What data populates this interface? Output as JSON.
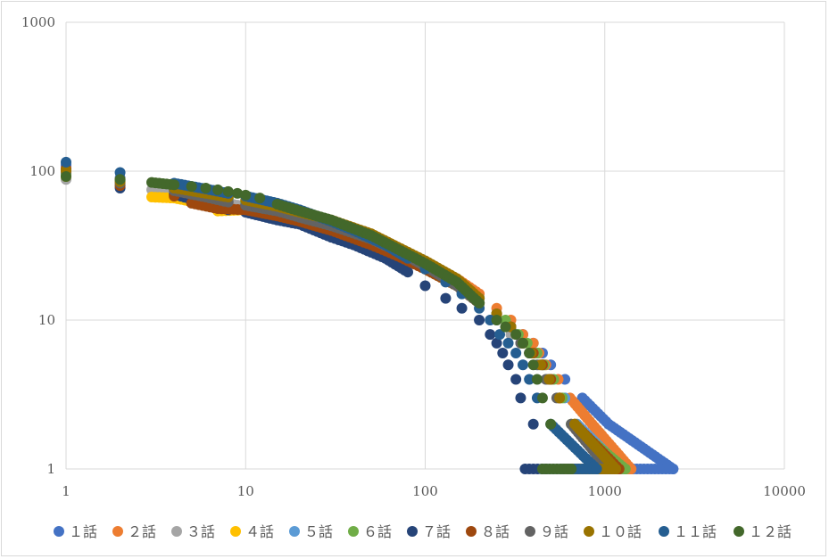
{
  "chart_data": {
    "type": "scatter",
    "title": "",
    "xlabel": "",
    "ylabel": "",
    "x_scale": "log",
    "y_scale": "log",
    "xlim": [
      1,
      10000
    ],
    "ylim": [
      1,
      1000
    ],
    "x_ticks": [
      "1",
      "10",
      "100",
      "1000",
      "10000"
    ],
    "y_ticks": [
      "1",
      "10",
      "100",
      "1000"
    ],
    "grid": true,
    "legend_position": "bottom",
    "series": [
      {
        "name": "１話",
        "color": "#4472C4",
        "points": [
          [
            1,
            110
          ],
          [
            2,
            90
          ],
          [
            4,
            75
          ],
          [
            6,
            68
          ],
          [
            8,
            63
          ],
          [
            10,
            60
          ],
          [
            15,
            55
          ],
          [
            20,
            48
          ],
          [
            30,
            42
          ],
          [
            40,
            37
          ],
          [
            60,
            30
          ],
          [
            80,
            25
          ],
          [
            100,
            22
          ],
          [
            150,
            17
          ],
          [
            200,
            14
          ],
          [
            250,
            11
          ],
          [
            300,
            9
          ],
          [
            350,
            8
          ],
          [
            400,
            7
          ],
          [
            450,
            6
          ],
          [
            500,
            5
          ],
          [
            600,
            4
          ],
          [
            750,
            3
          ],
          [
            1050,
            2
          ],
          [
            2400,
            1
          ]
        ]
      },
      {
        "name": "２話",
        "color": "#ED7D31",
        "points": [
          [
            1,
            95
          ],
          [
            2,
            88
          ],
          [
            4,
            80
          ],
          [
            6,
            70
          ],
          [
            8,
            65
          ],
          [
            10,
            62
          ],
          [
            15,
            57
          ],
          [
            20,
            52
          ],
          [
            30,
            46
          ],
          [
            40,
            40
          ],
          [
            60,
            33
          ],
          [
            80,
            27
          ],
          [
            100,
            24
          ],
          [
            150,
            19
          ],
          [
            200,
            15
          ],
          [
            250,
            12
          ],
          [
            300,
            10
          ],
          [
            350,
            8
          ],
          [
            400,
            7
          ],
          [
            430,
            6
          ],
          [
            470,
            5
          ],
          [
            550,
            4
          ],
          [
            640,
            3
          ],
          [
            850,
            2
          ],
          [
            1400,
            1
          ]
        ]
      },
      {
        "name": "３話",
        "color": "#A5A5A5",
        "points": [
          [
            1,
            88
          ],
          [
            2,
            82
          ],
          [
            3,
            75
          ],
          [
            5,
            67
          ],
          [
            7,
            62
          ],
          [
            10,
            58
          ],
          [
            15,
            52
          ],
          [
            20,
            47
          ],
          [
            30,
            41
          ],
          [
            50,
            33
          ],
          [
            70,
            28
          ],
          [
            100,
            22
          ],
          [
            150,
            17
          ],
          [
            200,
            13
          ],
          [
            250,
            10
          ],
          [
            300,
            8
          ],
          [
            340,
            7
          ],
          [
            380,
            6
          ],
          [
            430,
            5
          ],
          [
            480,
            4
          ],
          [
            560,
            3
          ],
          [
            700,
            2
          ],
          [
            1200,
            1
          ]
        ]
      },
      {
        "name": "４話",
        "color": "#FFC000",
        "points": [
          [
            1,
            92
          ],
          [
            2,
            80
          ],
          [
            3,
            67
          ],
          [
            4,
            66
          ],
          [
            6,
            60
          ],
          [
            7,
            54
          ],
          [
            10,
            55
          ],
          [
            15,
            52
          ],
          [
            20,
            47
          ],
          [
            30,
            42
          ],
          [
            50,
            34
          ],
          [
            70,
            28
          ],
          [
            100,
            22
          ],
          [
            150,
            17
          ],
          [
            200,
            13
          ],
          [
            250,
            11
          ],
          [
            300,
            9
          ],
          [
            350,
            7
          ],
          [
            400,
            6
          ],
          [
            450,
            5
          ],
          [
            500,
            4
          ],
          [
            560,
            3
          ],
          [
            680,
            2
          ],
          [
            1100,
            1
          ]
        ]
      },
      {
        "name": "５話",
        "color": "#5B9BD5",
        "points": [
          [
            1,
            98
          ],
          [
            2,
            86
          ],
          [
            4,
            76
          ],
          [
            6,
            70
          ],
          [
            8,
            65
          ],
          [
            10,
            61
          ],
          [
            15,
            56
          ],
          [
            20,
            50
          ],
          [
            30,
            44
          ],
          [
            50,
            35
          ],
          [
            70,
            29
          ],
          [
            100,
            23
          ],
          [
            150,
            18
          ],
          [
            200,
            14
          ],
          [
            250,
            11
          ],
          [
            300,
            9
          ],
          [
            350,
            7
          ],
          [
            400,
            6
          ],
          [
            450,
            5
          ],
          [
            500,
            4
          ],
          [
            600,
            3
          ],
          [
            700,
            2
          ],
          [
            1250,
            1
          ]
        ]
      },
      {
        "name": "６話",
        "color": "#70AD47",
        "points": [
          [
            1,
            96
          ],
          [
            2,
            87
          ],
          [
            4,
            78
          ],
          [
            6,
            71
          ],
          [
            8,
            66
          ],
          [
            10,
            62
          ],
          [
            15,
            57
          ],
          [
            20,
            51
          ],
          [
            30,
            45
          ],
          [
            50,
            36
          ],
          [
            70,
            30
          ],
          [
            100,
            24
          ],
          [
            150,
            18
          ],
          [
            200,
            14
          ],
          [
            250,
            11
          ],
          [
            280,
            10
          ],
          [
            330,
            8
          ],
          [
            370,
            7
          ],
          [
            420,
            6
          ],
          [
            460,
            5
          ],
          [
            520,
            4
          ],
          [
            580,
            3
          ],
          [
            650,
            2
          ],
          [
            1300,
            1
          ]
        ]
      },
      {
        "name": "７話",
        "color": "#264478",
        "points": [
          [
            1,
            102
          ],
          [
            2,
            77
          ],
          [
            4,
            70
          ],
          [
            6,
            61
          ],
          [
            8,
            55
          ],
          [
            10,
            53
          ],
          [
            15,
            47
          ],
          [
            20,
            44
          ],
          [
            30,
            36
          ],
          [
            40,
            32
          ],
          [
            60,
            26
          ],
          [
            80,
            21
          ],
          [
            100,
            17
          ],
          [
            130,
            14
          ],
          [
            160,
            12
          ],
          [
            200,
            10
          ],
          [
            230,
            8
          ],
          [
            250,
            7
          ],
          [
            270,
            6
          ],
          [
            290,
            5
          ],
          [
            320,
            4
          ],
          [
            340,
            3
          ],
          [
            400,
            2
          ],
          [
            470,
            1
          ]
        ]
      },
      {
        "name": "８話",
        "color": "#9E480E",
        "points": [
          [
            1,
            104
          ],
          [
            2,
            80
          ],
          [
            4,
            68
          ],
          [
            5,
            61
          ],
          [
            7,
            56
          ],
          [
            10,
            55
          ],
          [
            15,
            50
          ],
          [
            20,
            46
          ],
          [
            30,
            40
          ],
          [
            50,
            32
          ],
          [
            70,
            27
          ],
          [
            100,
            22
          ],
          [
            150,
            17
          ],
          [
            200,
            13
          ],
          [
            250,
            11
          ],
          [
            300,
            9
          ],
          [
            350,
            7
          ],
          [
            400,
            6
          ],
          [
            450,
            5
          ],
          [
            500,
            4
          ],
          [
            560,
            3
          ],
          [
            680,
            2
          ],
          [
            1200,
            1
          ]
        ]
      },
      {
        "name": "９話",
        "color": "#636363",
        "points": [
          [
            1,
            99
          ],
          [
            2,
            83
          ],
          [
            4,
            74
          ],
          [
            6,
            67
          ],
          [
            8,
            62
          ],
          [
            10,
            59
          ],
          [
            15,
            54
          ],
          [
            20,
            49
          ],
          [
            30,
            43
          ],
          [
            50,
            35
          ],
          [
            70,
            29
          ],
          [
            100,
            23
          ],
          [
            150,
            17
          ],
          [
            200,
            13
          ],
          [
            250,
            11
          ],
          [
            300,
            9
          ],
          [
            340,
            7
          ],
          [
            380,
            6
          ],
          [
            420,
            5
          ],
          [
            470,
            4
          ],
          [
            540,
            3
          ],
          [
            650,
            2
          ],
          [
            1050,
            1
          ]
        ]
      },
      {
        "name": "１０話",
        "color": "#997300",
        "points": [
          [
            1,
            101
          ],
          [
            2,
            85
          ],
          [
            4,
            77
          ],
          [
            6,
            71
          ],
          [
            8,
            67
          ],
          [
            10,
            64
          ],
          [
            15,
            58
          ],
          [
            20,
            53
          ],
          [
            30,
            47
          ],
          [
            50,
            38
          ],
          [
            70,
            31
          ],
          [
            100,
            25
          ],
          [
            150,
            19
          ],
          [
            200,
            14
          ],
          [
            250,
            11
          ],
          [
            300,
            9
          ],
          [
            350,
            7
          ],
          [
            390,
            6
          ],
          [
            440,
            5
          ],
          [
            490,
            4
          ],
          [
            560,
            3
          ],
          [
            680,
            2
          ],
          [
            1150,
            1
          ]
        ]
      },
      {
        "name": "１１話",
        "color": "#255E91",
        "points": [
          [
            1,
            115
          ],
          [
            2,
            98
          ],
          [
            4,
            83
          ],
          [
            6,
            76
          ],
          [
            8,
            71
          ],
          [
            10,
            68
          ],
          [
            15,
            61
          ],
          [
            20,
            55
          ],
          [
            30,
            46
          ],
          [
            40,
            40
          ],
          [
            60,
            32
          ],
          [
            80,
            26
          ],
          [
            100,
            22
          ],
          [
            130,
            18
          ],
          [
            160,
            15
          ],
          [
            200,
            12
          ],
          [
            230,
            10
          ],
          [
            260,
            8
          ],
          [
            290,
            7
          ],
          [
            320,
            6
          ],
          [
            350,
            5
          ],
          [
            380,
            4
          ],
          [
            420,
            3
          ],
          [
            500,
            2
          ],
          [
            900,
            1
          ]
        ]
      },
      {
        "name": "１２話",
        "color": "#43682B",
        "points": [
          [
            1,
            92
          ],
          [
            2,
            88
          ],
          [
            3,
            84
          ],
          [
            4,
            81
          ],
          [
            5,
            79
          ],
          [
            6,
            77
          ],
          [
            7,
            75
          ],
          [
            8,
            73
          ],
          [
            9,
            71
          ],
          [
            10,
            69
          ],
          [
            12,
            66
          ],
          [
            15,
            60
          ],
          [
            20,
            54
          ],
          [
            30,
            47
          ],
          [
            50,
            37
          ],
          [
            70,
            30
          ],
          [
            100,
            24
          ],
          [
            150,
            18
          ],
          [
            200,
            13
          ],
          [
            250,
            10
          ],
          [
            280,
            9
          ],
          [
            320,
            8
          ],
          [
            350,
            7
          ],
          [
            380,
            6
          ],
          [
            400,
            5
          ],
          [
            420,
            4
          ],
          [
            450,
            3
          ],
          [
            500,
            2
          ],
          [
            650,
            1
          ]
        ]
      }
    ]
  }
}
